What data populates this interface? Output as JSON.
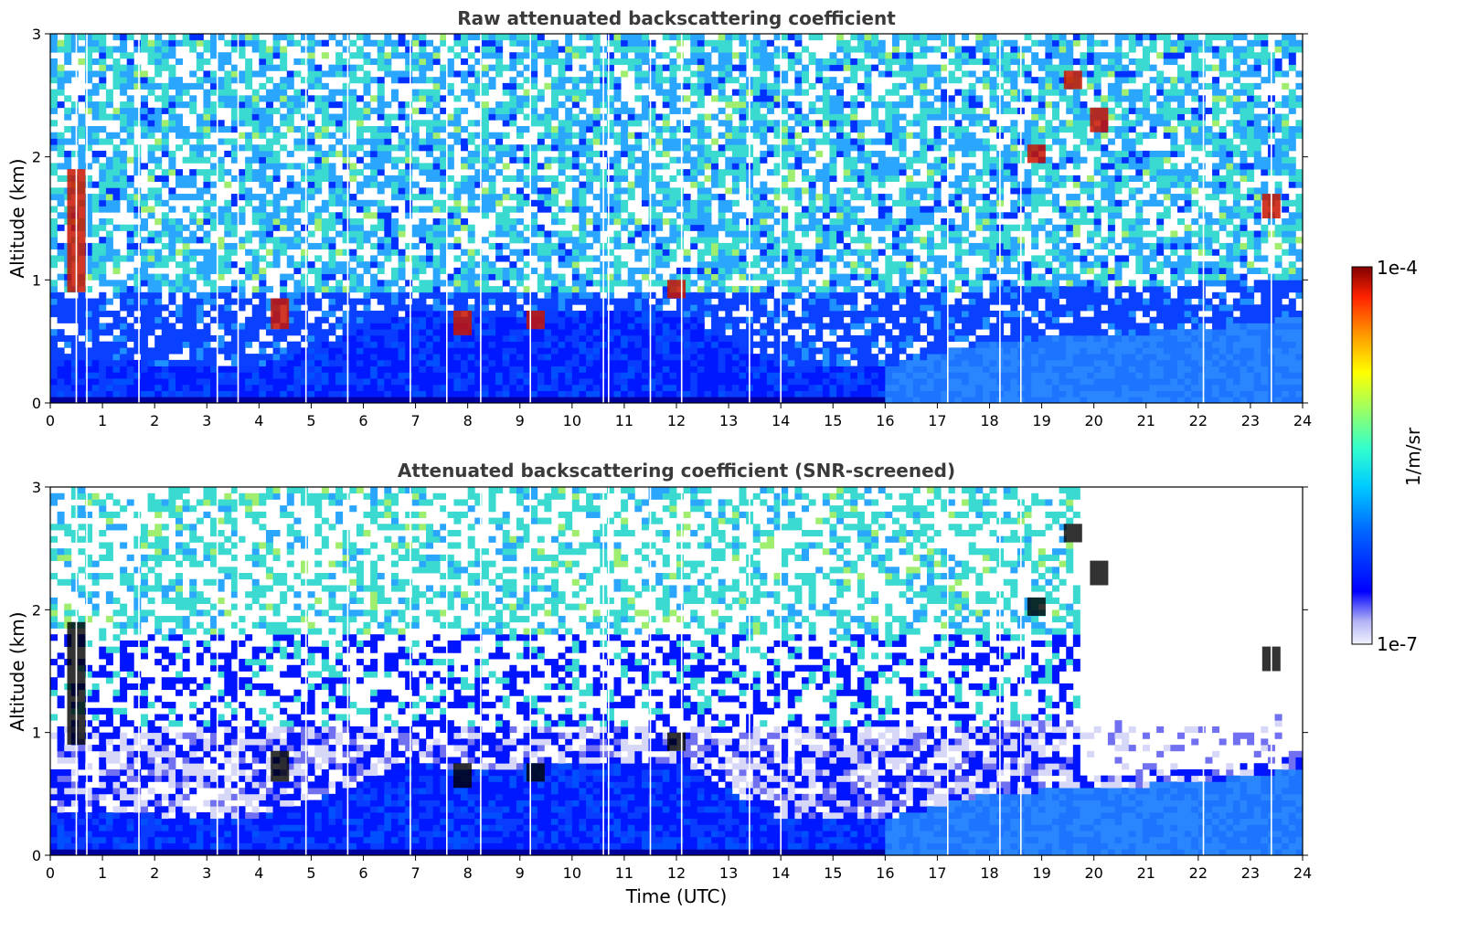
{
  "chart_data": [
    {
      "type": "heatmap",
      "title": "Raw attenuated backscattering coefficient",
      "xlabel": "",
      "ylabel": "Altitude (km)",
      "xlim": [
        0,
        24
      ],
      "ylim": [
        0,
        3
      ],
      "xticks": [
        "0",
        "1",
        "2",
        "3",
        "4",
        "5",
        "6",
        "7",
        "8",
        "9",
        "10",
        "11",
        "12",
        "13",
        "14",
        "15",
        "16",
        "17",
        "18",
        "19",
        "20",
        "21",
        "22",
        "23",
        "24"
      ],
      "yticks": [
        "0",
        "1",
        "2",
        "3"
      ],
      "description_of_field": {
        "boundary_layer_top_km": [
          [
            0,
            0.35
          ],
          [
            4,
            0.3
          ],
          [
            7,
            0.75
          ],
          [
            8,
            0.7
          ],
          [
            10,
            0.75
          ],
          [
            12,
            0.75
          ],
          [
            14,
            0.3
          ],
          [
            16,
            0.3
          ],
          [
            18,
            0.5
          ],
          [
            22,
            0.6
          ],
          [
            24,
            0.7
          ]
        ],
        "aerosol_layer_top_km": [
          [
            0,
            0.9
          ],
          [
            16,
            0.9
          ],
          [
            24,
            1.0
          ]
        ],
        "cloud_features": [
          {
            "t": 0.5,
            "z": [
              0.9,
              1.9
            ]
          },
          {
            "t": 4.4,
            "z": [
              0.6,
              0.85
            ]
          },
          {
            "t": 7.9,
            "z": [
              0.55,
              0.75
            ]
          },
          {
            "t": 9.3,
            "z": [
              0.6,
              0.75
            ]
          },
          {
            "t": 12.0,
            "z": [
              0.85,
              1.0
            ]
          },
          {
            "t": 18.9,
            "z": [
              1.95,
              2.1
            ]
          },
          {
            "t": 19.6,
            "z": [
              2.55,
              2.7
            ]
          },
          {
            "t": 20.1,
            "z": [
              2.2,
              2.4
            ]
          },
          {
            "t": 23.4,
            "z": [
              1.5,
              1.7
            ]
          }
        ]
      }
    },
    {
      "type": "heatmap",
      "title": "Attenuated backscattering coefficient (SNR-screened)",
      "xlabel": "Time (UTC)",
      "ylabel": "Altitude (km)",
      "xlim": [
        0,
        24
      ],
      "ylim": [
        0,
        3
      ],
      "xticks": [
        "0",
        "1",
        "2",
        "3",
        "4",
        "5",
        "6",
        "7",
        "8",
        "9",
        "10",
        "11",
        "12",
        "13",
        "14",
        "15",
        "16",
        "17",
        "18",
        "19",
        "20",
        "21",
        "22",
        "23",
        "24"
      ],
      "yticks": [
        "0",
        "1",
        "2",
        "3"
      ],
      "description_of_field": {
        "screened_gap_after_hour": 19.7
      }
    }
  ],
  "colorbar": {
    "label": "1/m/sr",
    "max_label": "1e-4",
    "min_label": "1e-7",
    "scale": "log",
    "colormap": "jet (white at minimum)"
  }
}
